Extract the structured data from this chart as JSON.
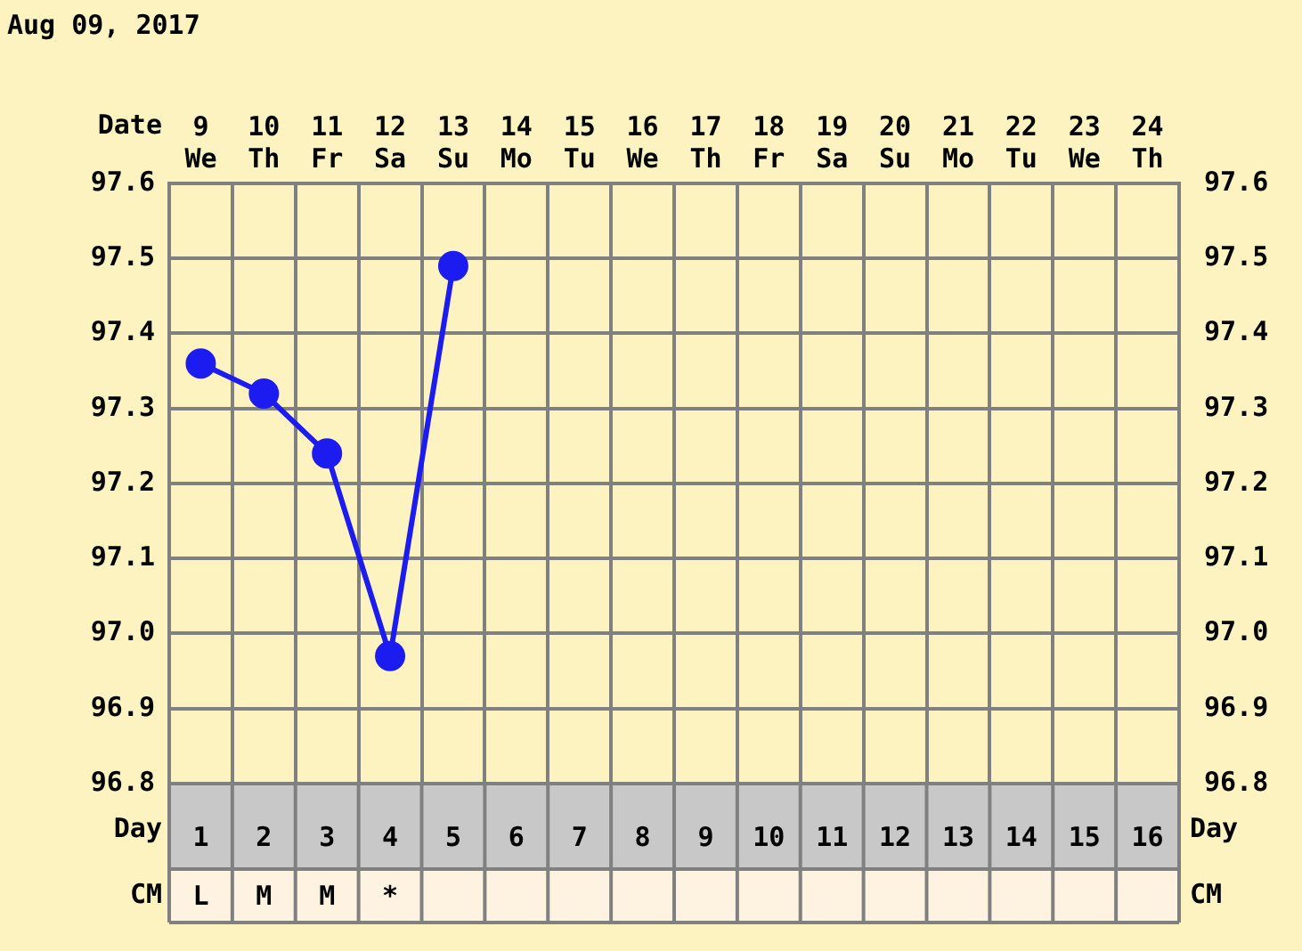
{
  "chart_data": {
    "type": "line",
    "xlabel": "Date",
    "x2label": "Day",
    "categories": [
      "9 We",
      "10 Th",
      "11 Fr",
      "12 Sa",
      "13 Su",
      "14 Mo",
      "15 Tu",
      "16 We",
      "17 Th",
      "18 Fr",
      "19 Sa",
      "20 Su",
      "21 Mo",
      "22 Tu",
      "23 We",
      "24 Th"
    ],
    "series": [
      {
        "color": "#1c1cf0",
        "values": [
          97.36,
          97.32,
          97.24,
          96.97,
          97.49,
          null,
          null,
          null,
          null,
          null,
          null,
          null,
          null,
          null,
          null,
          null
        ]
      }
    ],
    "ylim": [
      96.8,
      97.6
    ],
    "yticks": [
      {
        "value": 96.8,
        "label": "96.8"
      },
      {
        "value": 96.9,
        "label": "96.9"
      },
      {
        "value": 97.0,
        "label": "97.0"
      },
      {
        "value": 97.1,
        "label": "97.1"
      },
      {
        "value": 97.2,
        "label": "97.2"
      },
      {
        "value": 97.3,
        "label": "97.3"
      },
      {
        "value": 97.4,
        "label": "97.4"
      },
      {
        "value": 97.5,
        "label": "97.5"
      },
      {
        "value": 97.6,
        "label": "97.6"
      }
    ],
    "y2lim": [
      96.8,
      97.6
    ],
    "y2ticks": [
      {
        "value": 96.8,
        "label": "96.8"
      },
      {
        "value": 96.9,
        "label": "96.9"
      },
      {
        "value": 97.0,
        "label": "97.0"
      },
      {
        "value": 97.1,
        "label": "97.1"
      },
      {
        "value": 97.2,
        "label": "97.2"
      },
      {
        "value": 97.3,
        "label": "97.3"
      },
      {
        "value": 97.4,
        "label": "97.4"
      },
      {
        "value": 97.5,
        "label": "97.5"
      },
      {
        "value": 97.6,
        "label": "97.6"
      }
    ],
    "x2lim": [
      0.5,
      16.5
    ],
    "x2ticks": [
      1,
      2,
      3,
      4,
      5,
      6,
      7,
      8,
      9,
      10,
      11,
      12,
      13,
      14,
      15,
      16
    ],
    "annotations": [
      "Aug 09, 2017",
      "CM",
      "L",
      "M",
      "M",
      "*"
    ],
    "grid": true,
    "legend": false,
    "marker": "circle",
    "line_style": "solid"
  }
}
